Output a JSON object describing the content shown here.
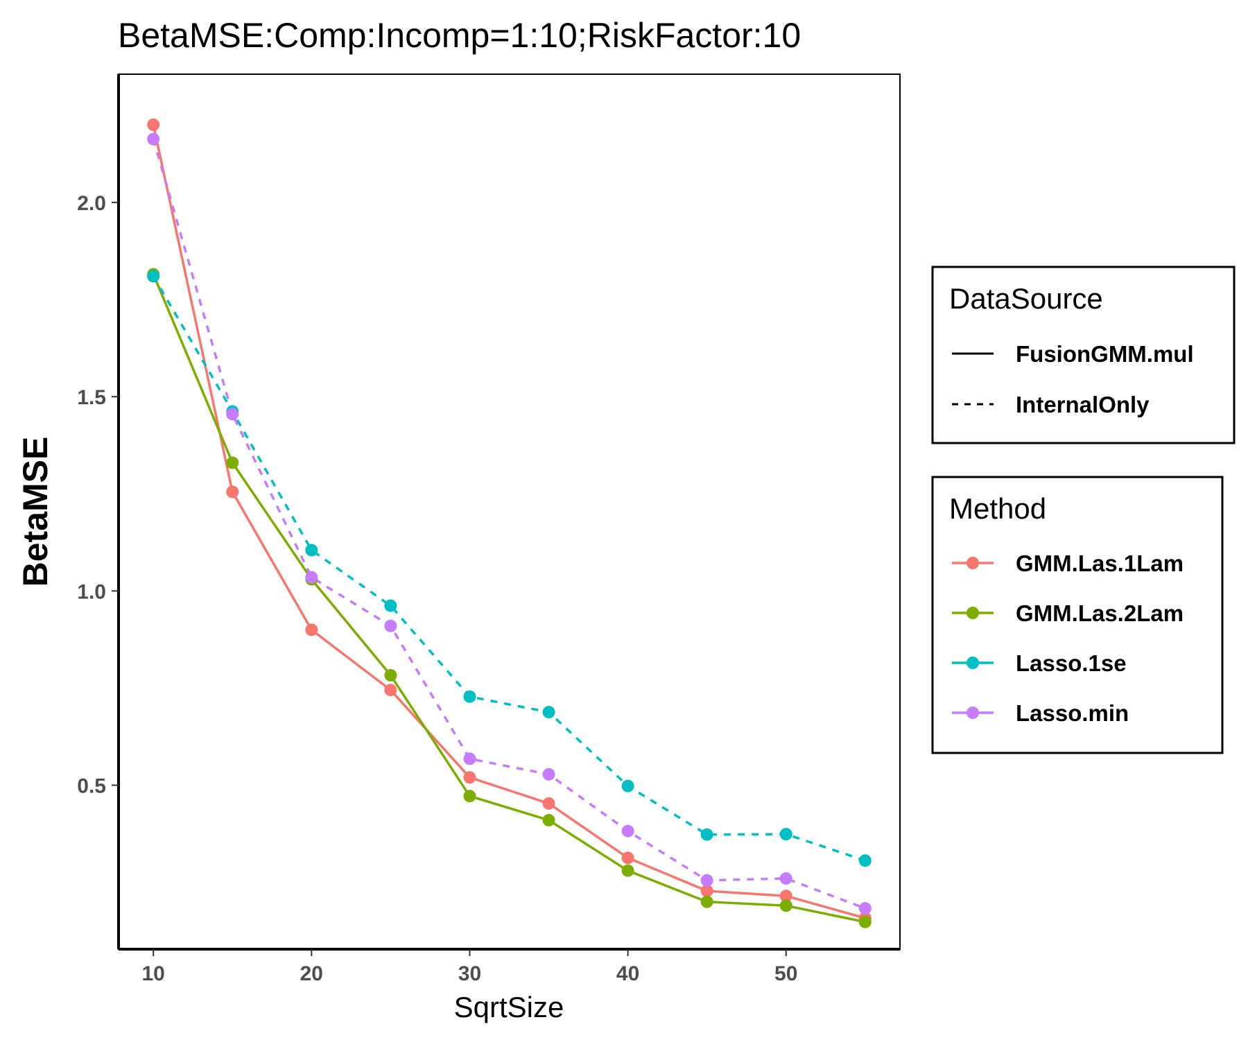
{
  "chart_data": {
    "type": "line",
    "title": "BetaMSE:Comp:Incomp=1:10;RiskFactor:10",
    "xlabel": "SqrtSize",
    "ylabel": "BetaMSE",
    "xlim": [
      7.8,
      57.2
    ],
    "ylim": [
      0.078,
      2.33
    ],
    "x_ticks": [
      10,
      20,
      30,
      40,
      50
    ],
    "x_tick_labels": [
      "10",
      "20",
      "30",
      "40",
      "50"
    ],
    "y_ticks": [
      0.5,
      1.0,
      1.5,
      2.0
    ],
    "y_tick_labels": [
      "0.5",
      "1.0",
      "1.5",
      "2.0"
    ],
    "grid": false,
    "legend_position": "right",
    "x": [
      10,
      15,
      20,
      25,
      30,
      35,
      40,
      45,
      50,
      55
    ],
    "series": [
      {
        "name": "GMM.Las.1Lam",
        "color": "#F8766D",
        "linetype": "solid",
        "values": [
          2.2,
          1.255,
          0.9,
          0.745,
          0.52,
          0.453,
          0.313,
          0.228,
          0.215,
          0.158
        ]
      },
      {
        "name": "GMM.Las.2Lam",
        "color": "#7CAE00",
        "linetype": "solid",
        "values": [
          1.815,
          1.33,
          1.03,
          0.783,
          0.472,
          0.41,
          0.28,
          0.2,
          0.19,
          0.148
        ]
      },
      {
        "name": "Lasso.1se",
        "color": "#00BFC4",
        "linetype": "dashed",
        "values": [
          1.81,
          1.462,
          1.105,
          0.962,
          0.728,
          0.688,
          0.498,
          0.373,
          0.374,
          0.306
        ]
      },
      {
        "name": "Lasso.min",
        "color": "#C77CFF",
        "linetype": "dashed",
        "values": [
          2.163,
          1.455,
          1.035,
          0.91,
          0.568,
          0.528,
          0.382,
          0.255,
          0.26,
          0.183
        ]
      }
    ]
  },
  "legends": {
    "datasource": {
      "title": "DataSource",
      "entries": [
        {
          "label": "FusionGMM.mul",
          "linetype": "solid"
        },
        {
          "label": "InternalOnly",
          "linetype": "dashed"
        }
      ]
    },
    "method": {
      "title": "Method",
      "entries": [
        {
          "label": "GMM.Las.1Lam",
          "color": "#F8766D"
        },
        {
          "label": "GMM.Las.2Lam",
          "color": "#7CAE00"
        },
        {
          "label": "Lasso.1se",
          "color": "#00BFC4"
        },
        {
          "label": "Lasso.min",
          "color": "#C77CFF"
        }
      ]
    }
  }
}
